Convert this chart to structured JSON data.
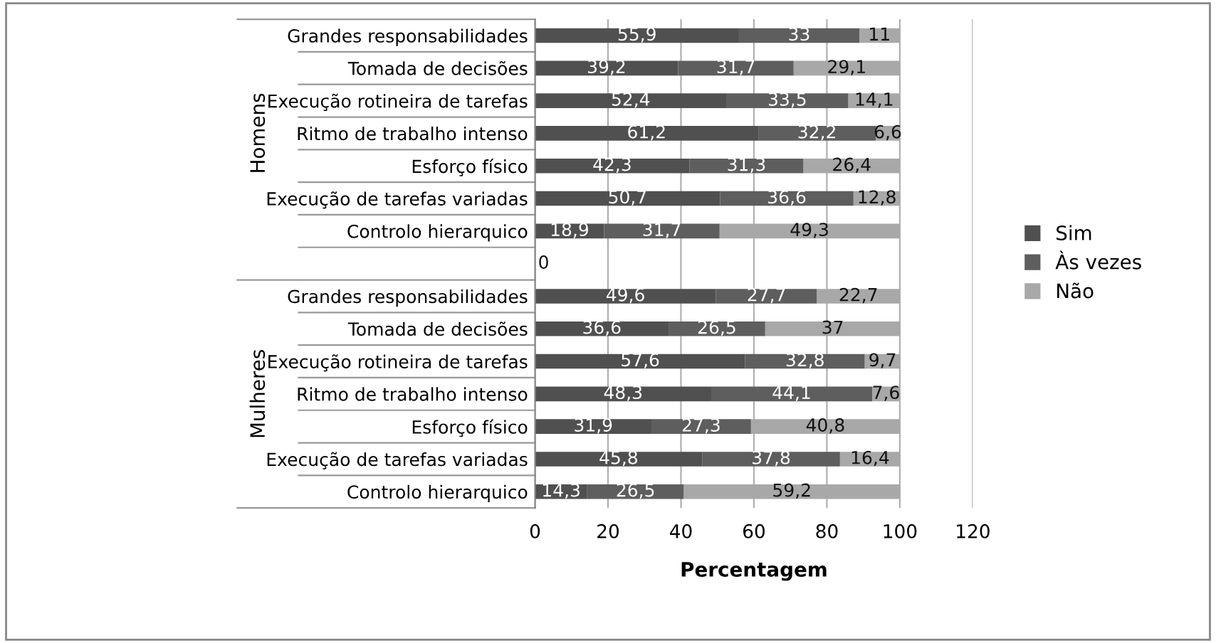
{
  "chart_data": {
    "type": "bar",
    "orientation": "horizontal",
    "stacked": true,
    "xlabel": "Percentagem",
    "categories": [
      "Grandes responsabilidades",
      "Tomada de decisões",
      "Execução rotineira de tarefas",
      "Ritmo de trabalho intenso",
      "Esforço físico",
      "Execução de tarefas variadas",
      "Controlo hierarquico",
      null,
      "Grandes responsabilidades",
      "Tomada de decisões",
      "Execução rotineira de tarefas",
      "Ritmo de trabalho intenso",
      "Esforço físico",
      "Execução de tarefas variadas",
      "Controlo hierarquico"
    ],
    "series": [
      {
        "name": "Sim",
        "color": "#505050",
        "values": [
          55.9,
          39.2,
          52.4,
          61.2,
          42.3,
          50.7,
          18.9,
          0,
          49.6,
          36.6,
          57.6,
          48.3,
          31.9,
          45.8,
          14.3
        ],
        "value_labels": [
          "55,9",
          "39,2",
          "52,4",
          "61,2",
          "42,3",
          "50,7",
          "18,9",
          "0",
          "49,6",
          "36,6",
          "57,6",
          "48,3",
          "31,9",
          "45,8",
          "14,3"
        ]
      },
      {
        "name": "Às vezes",
        "color": "#5e5e5e",
        "values": [
          33,
          31.7,
          33.5,
          32.2,
          31.3,
          36.6,
          31.7,
          null,
          27.7,
          26.5,
          32.8,
          44.1,
          27.3,
          37.8,
          26.5
        ],
        "value_labels": [
          "33",
          "31,7",
          "33,5",
          "32,2",
          "31,3",
          "36,6",
          "31,7",
          null,
          "27,7",
          "26,5",
          "32,8",
          "44,1",
          "27,3",
          "37,8",
          "26,5"
        ]
      },
      {
        "name": "Não",
        "color": "#a8a8a8",
        "values": [
          11,
          29.1,
          14.1,
          6.6,
          26.4,
          12.8,
          49.3,
          null,
          22.7,
          37,
          9.7,
          7.6,
          40.8,
          16.4,
          59.2
        ],
        "value_labels": [
          "11",
          "29,1",
          "14,1",
          "6,6",
          "26,4",
          "12,8",
          "49,3",
          null,
          "22,7",
          "37",
          "9,7",
          "7,6",
          "40,8",
          "16,4",
          "59,2"
        ]
      }
    ],
    "annotations": [
      "Homens",
      "Mulheres"
    ],
    "xlim": [
      0,
      120
    ],
    "xticks": [
      0,
      20,
      40,
      60,
      80,
      100,
      120
    ],
    "grid": "x",
    "legend": "right"
  }
}
